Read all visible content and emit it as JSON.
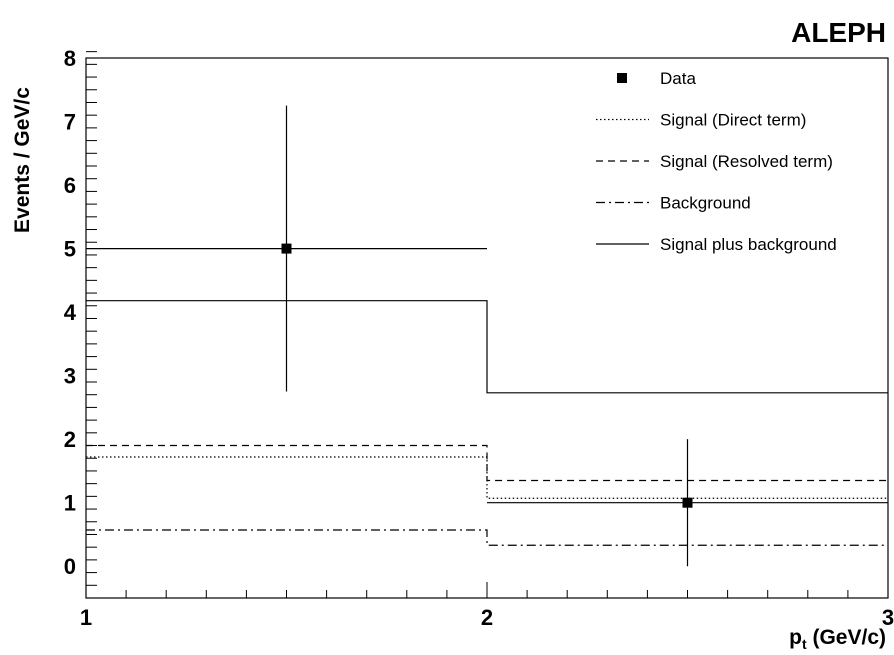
{
  "chart_data": {
    "type": "histogram",
    "corner_label": "ALEPH",
    "xlabel": "p",
    "xlabel_sub": "t",
    "xlabel_unit": " (GeV/c)",
    "ylabel": "Events /  GeV/c",
    "xlim": [
      1,
      3
    ],
    "ylim": [
      -0.5,
      8
    ],
    "x_ticks": [
      "1",
      "2",
      "3"
    ],
    "y_ticks": [
      "0",
      "1",
      "2",
      "3",
      "4",
      "5",
      "6",
      "7",
      "8"
    ],
    "bin_edges": [
      1,
      2,
      3
    ],
    "data_points": [
      {
        "x": 1.5,
        "y": 5.0,
        "x_err": 0.5,
        "y_err_low": 2.25,
        "y_err_high": 2.25
      },
      {
        "x": 2.5,
        "y": 1.0,
        "x_err": 0.5,
        "y_err_low": 1.0,
        "y_err_high": 1.0
      }
    ],
    "series": [
      {
        "name": "Signal (Direct term)",
        "style": "dotted",
        "values": [
          1.72,
          1.07
        ]
      },
      {
        "name": "Signal (Resolved term)",
        "style": "dashed",
        "values": [
          1.9,
          1.35
        ]
      },
      {
        "name": "Background",
        "style": "dashdot",
        "values": [
          0.57,
          0.33
        ]
      },
      {
        "name": "Signal plus background",
        "style": "solid",
        "values": [
          4.18,
          2.73
        ]
      }
    ],
    "legend": [
      {
        "label": "Data",
        "marker": "square"
      },
      {
        "label": "Signal (Direct term)",
        "style": "dotted"
      },
      {
        "label": "Signal (Resolved term)",
        "style": "dashed"
      },
      {
        "label": "Background",
        "style": "dashdot"
      },
      {
        "label": "Signal plus background",
        "style": "solid"
      }
    ],
    "legend_position": "top-right",
    "grid": false,
    "colors": {
      "line": "#000000",
      "background": "#ffffff"
    }
  }
}
